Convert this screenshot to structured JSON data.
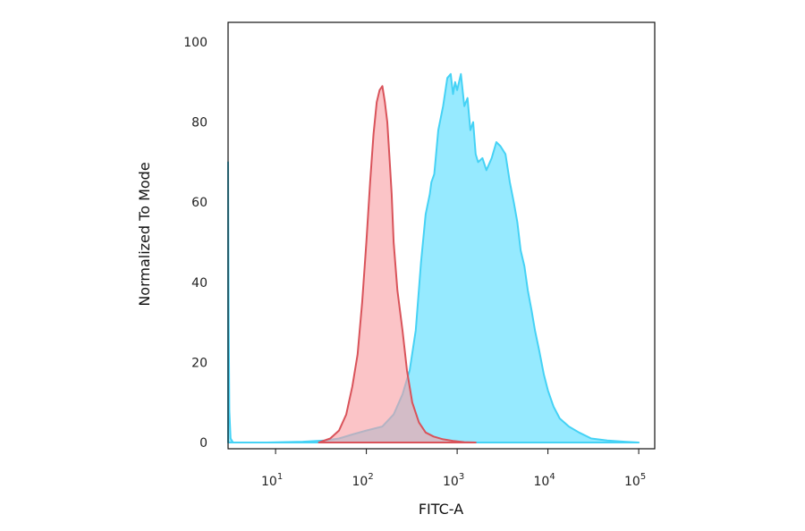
{
  "chart_data": {
    "type": "area",
    "title": "",
    "xlabel": "FITC-A",
    "ylabel": "Normalized To Mode",
    "x_scale": "log",
    "xlim": [
      3,
      150000
    ],
    "ylim": [
      0,
      100
    ],
    "y_ticks": [
      0,
      20,
      40,
      60,
      80,
      100
    ],
    "x_ticks": [
      {
        "value": 10,
        "base": "10",
        "exp": "1"
      },
      {
        "value": 100,
        "base": "10",
        "exp": "2"
      },
      {
        "value": 1000,
        "base": "10",
        "exp": "3"
      },
      {
        "value": 10000,
        "base": "10",
        "exp": "4"
      },
      {
        "value": 100000,
        "base": "10",
        "exp": "5"
      }
    ],
    "grid": false,
    "legend": "none",
    "series": [
      {
        "color": "#45d2f5",
        "fill": "#8de8ff",
        "x": [
          3.0,
          3.05,
          3.1,
          3.2,
          3.4,
          8,
          20,
          35,
          50,
          70,
          100,
          150,
          200,
          250,
          300,
          350,
          400,
          450,
          500,
          520,
          560,
          620,
          700,
          780,
          850,
          900,
          950,
          1000,
          1100,
          1200,
          1300,
          1400,
          1500,
          1600,
          1700,
          1900,
          2100,
          2400,
          2700,
          3000,
          3400,
          3800,
          4200,
          4600,
          5000,
          5500,
          6000,
          6600,
          7200,
          8000,
          9000,
          10000,
          11500,
          13500,
          17000,
          22000,
          30000,
          45000,
          70000,
          100000
        ],
        "y": [
          70,
          30,
          8,
          1,
          0,
          0,
          0.2,
          0.5,
          1,
          2,
          3,
          4,
          7,
          12,
          18,
          28,
          45,
          57,
          62,
          65,
          67,
          78,
          84,
          91,
          92,
          87,
          90,
          88,
          92,
          84,
          86,
          78,
          80,
          72,
          70,
          71,
          68,
          71,
          75,
          74,
          72,
          65,
          60,
          55,
          48,
          44,
          38,
          33,
          28,
          23,
          17,
          13,
          9,
          6,
          4,
          2.5,
          1,
          0.5,
          0.2,
          0
        ]
      },
      {
        "color": "#d9535a",
        "fill": "#f9a0a4",
        "x": [
          30,
          40,
          50,
          60,
          70,
          80,
          90,
          100,
          110,
          120,
          130,
          140,
          150,
          160,
          170,
          180,
          190,
          200,
          220,
          250,
          280,
          320,
          380,
          450,
          550,
          700,
          900,
          1200,
          1600
        ],
        "y": [
          0,
          1,
          3,
          7,
          14,
          22,
          35,
          50,
          65,
          77,
          85,
          88,
          89,
          85,
          80,
          71,
          62,
          50,
          38,
          28,
          18,
          10,
          5,
          2.5,
          1.5,
          0.8,
          0.4,
          0.1,
          0
        ]
      }
    ]
  }
}
